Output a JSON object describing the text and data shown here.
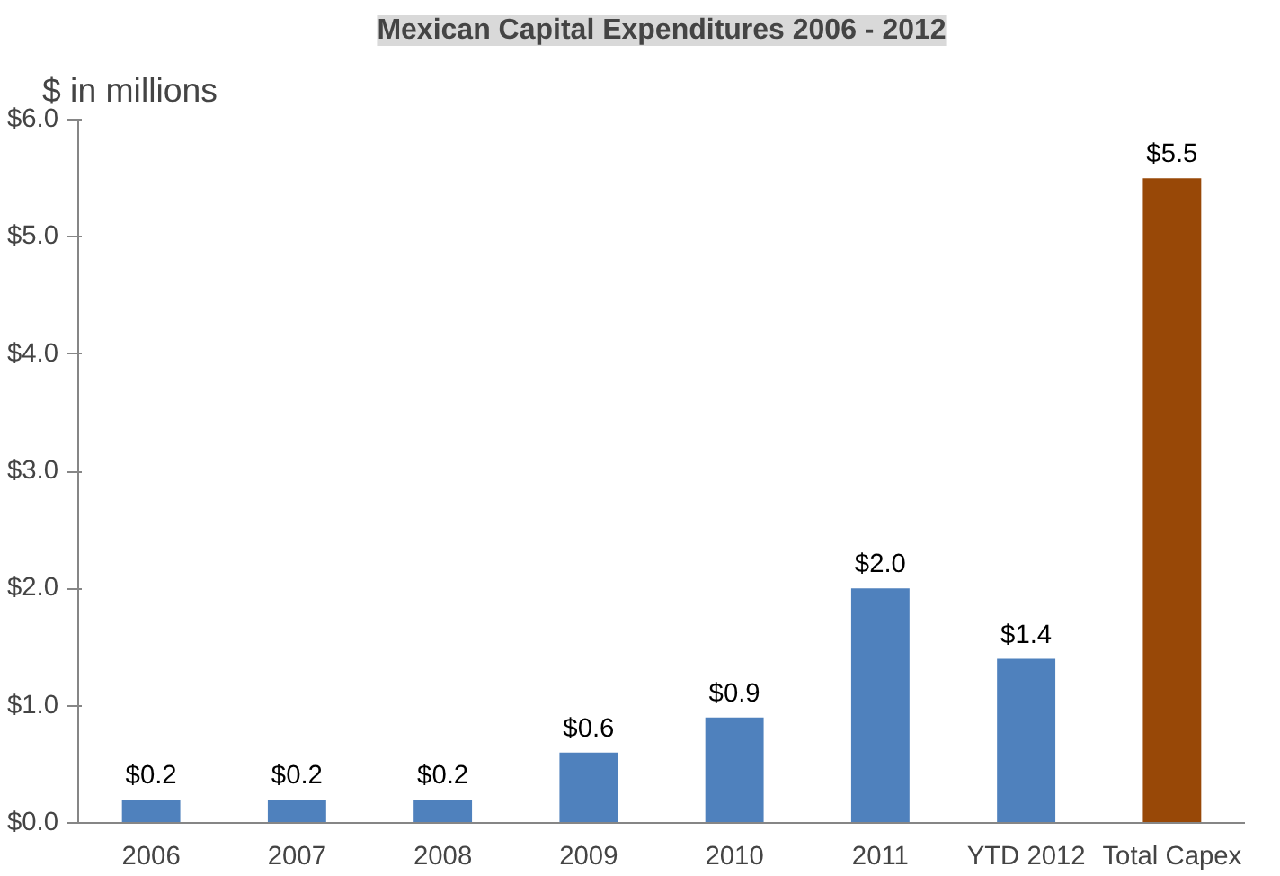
{
  "chart_data": {
    "type": "bar",
    "title": "Mexican Capital Expenditures 2006 - 2012",
    "ylabel": "$ in millions",
    "categories": [
      "2006",
      "2007",
      "2008",
      "2009",
      "2010",
      "2011",
      "YTD 2012",
      "Total Capex"
    ],
    "values": [
      0.2,
      0.2,
      0.2,
      0.6,
      0.9,
      2.0,
      1.4,
      5.5
    ],
    "colors": [
      "#4f81bd",
      "#4f81bd",
      "#4f81bd",
      "#4f81bd",
      "#4f81bd",
      "#4f81bd",
      "#4f81bd",
      "#984807"
    ],
    "value_labels": [
      "$0.2",
      "$0.2",
      "$0.2",
      "$0.6",
      "$0.9",
      "$2.0",
      "$1.4",
      "$5.5"
    ],
    "ylim": [
      0,
      6
    ],
    "yticks": [
      {
        "value": 0,
        "label": "$0.0"
      },
      {
        "value": 1,
        "label": "$1.0"
      },
      {
        "value": 2,
        "label": "$2.0"
      },
      {
        "value": 3,
        "label": "$3.0"
      },
      {
        "value": 4,
        "label": "$4.0"
      },
      {
        "value": 5,
        "label": "$5.0"
      },
      {
        "value": 6,
        "label": "$6.0"
      }
    ],
    "grid": false
  }
}
